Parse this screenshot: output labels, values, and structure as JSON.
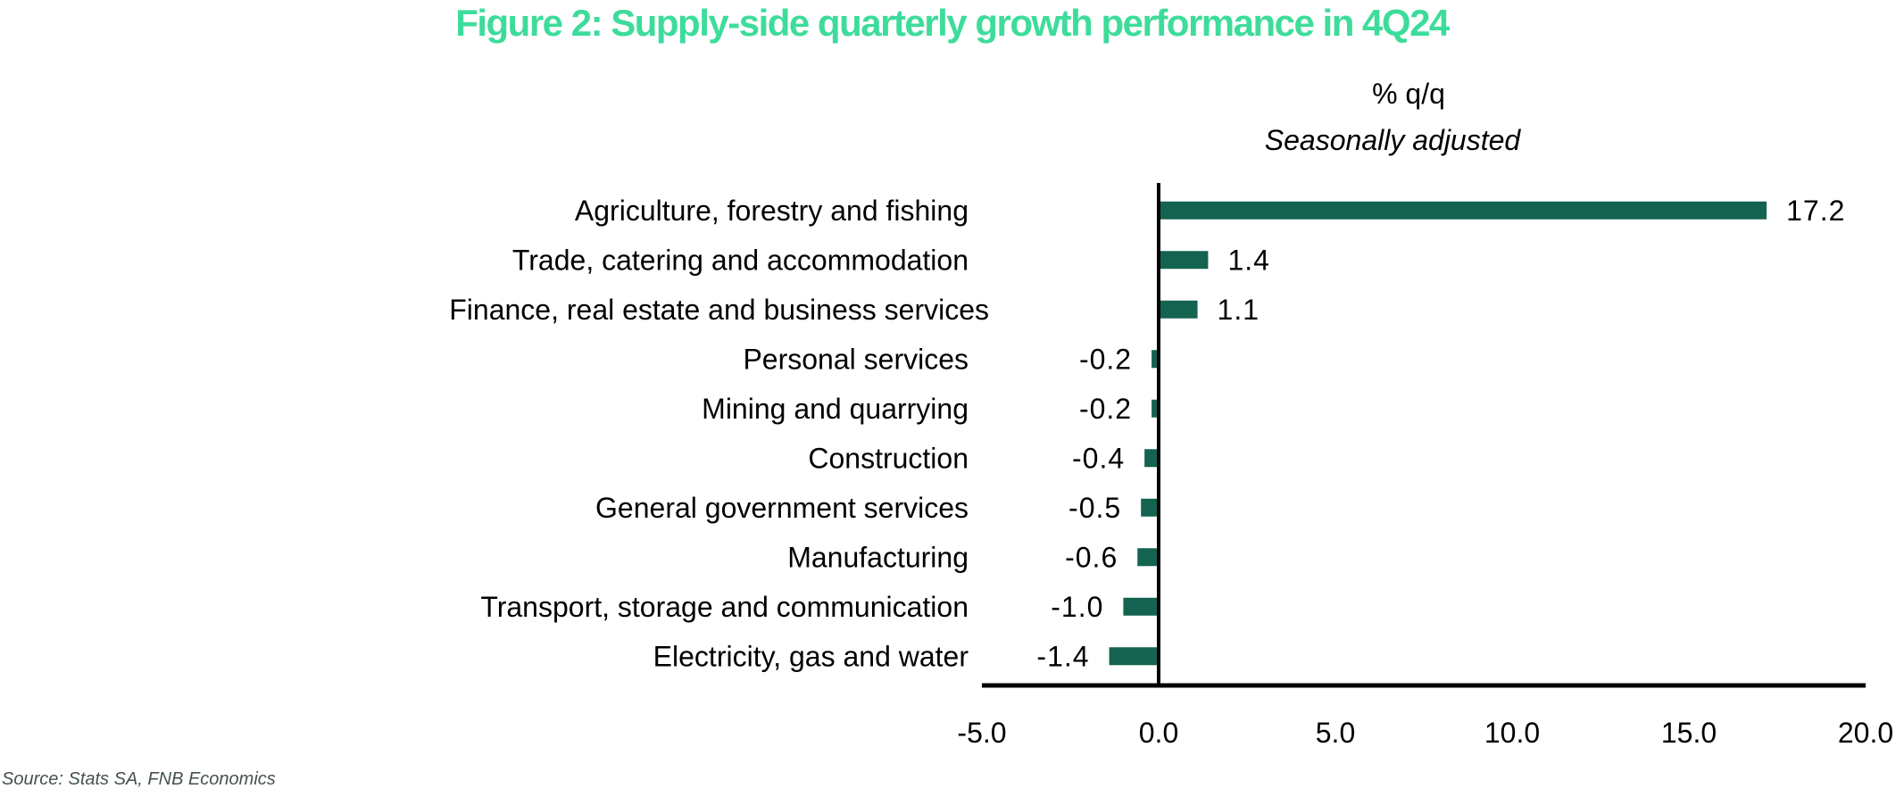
{
  "chart_data": {
    "type": "bar",
    "orientation": "horizontal",
    "title": "Figure 2: Supply-side quarterly growth performance in 4Q24",
    "unit_label": "% q/q",
    "subtitle": "Seasonally adjusted",
    "source": "Source: Stats SA, FNB Economics",
    "xlabel": "",
    "ylabel": "",
    "xlim": [
      -5,
      20
    ],
    "xticks": [
      -5,
      0,
      5,
      10,
      15,
      20
    ],
    "xtick_labels": [
      "-5.0",
      "0.0",
      "5.0",
      "10.0",
      "15.0",
      "20.0"
    ],
    "grid": false,
    "legend": "none",
    "bar_color": "#136350",
    "title_color": "#3ddc9a",
    "categories": [
      "Agriculture, forestry and fishing",
      "Trade, catering and accommodation",
      "Finance, real estate and business services",
      "Personal services",
      "Mining and quarrying",
      "Construction",
      "General government services",
      "Manufacturing",
      "Transport, storage and communication",
      "Electricity, gas and water"
    ],
    "values": [
      17.2,
      1.4,
      1.1,
      -0.2,
      -0.2,
      -0.4,
      -0.5,
      -0.6,
      -1.0,
      -1.4
    ],
    "value_labels": [
      "17.2",
      "1.4",
      "1.1",
      "-0.2",
      "-0.2",
      "-0.4",
      "-0.5",
      "-0.6",
      "-1.0",
      "-1.4"
    ]
  }
}
